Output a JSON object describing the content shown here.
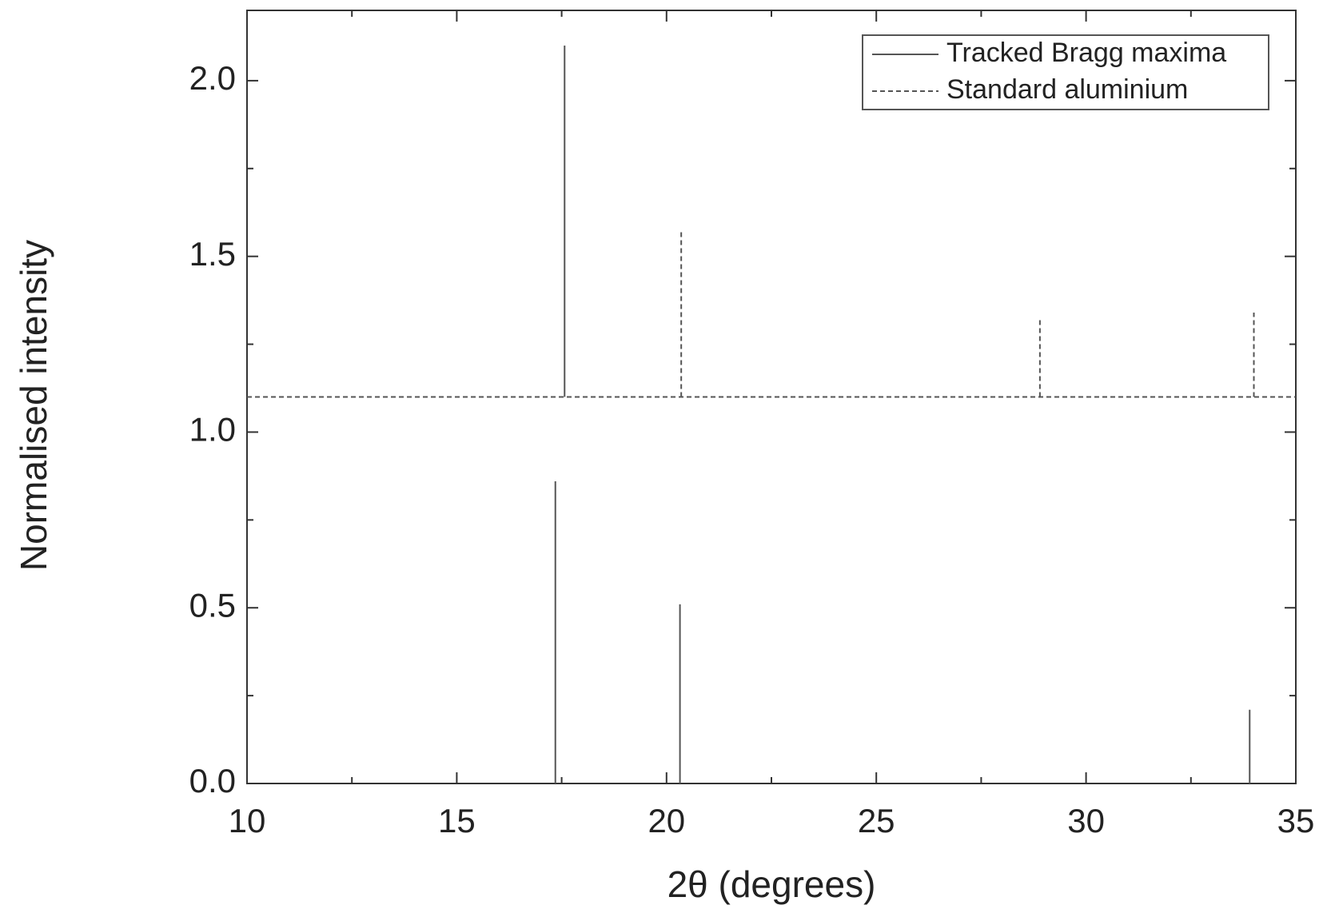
{
  "chart_data": {
    "type": "stem",
    "x_label": "2θ (degrees)",
    "y_label": "Normalised intensity",
    "xlim": [
      10,
      35
    ],
    "ylim": [
      0,
      2.2
    ],
    "xticks": [
      10,
      15,
      20,
      25,
      30,
      35
    ],
    "yticks": [
      {
        "value": 0,
        "label": "0.0"
      },
      0.5,
      {
        "value": 1,
        "label": "1.0"
      },
      1.5,
      {
        "value": 2,
        "label": "2.0"
      }
    ],
    "xminorticks": [
      12.5,
      17.5,
      22.5,
      27.5,
      32.5
    ],
    "yminorticks": [
      0.25,
      0.75,
      1.25,
      1.75
    ],
    "grid": false,
    "legend_position": "upper right",
    "series": [
      {
        "name": "Tracked Bragg maxima",
        "color": "#555555",
        "dash": false,
        "x": [
          17.35,
          17.57,
          20.32,
          33.9
        ],
        "bottoms": [
          0,
          1.1,
          0,
          0
        ],
        "values": [
          0.86,
          2.1,
          0.51,
          0.21
        ]
      },
      {
        "name": "Standard aluminium",
        "color": "#555555",
        "dash": true,
        "baseline": 1.1,
        "x": [
          20.35,
          28.9,
          34.0
        ],
        "bottoms": [
          1.1,
          1.1,
          1.1
        ],
        "values": [
          1.57,
          1.32,
          1.34
        ]
      }
    ]
  }
}
